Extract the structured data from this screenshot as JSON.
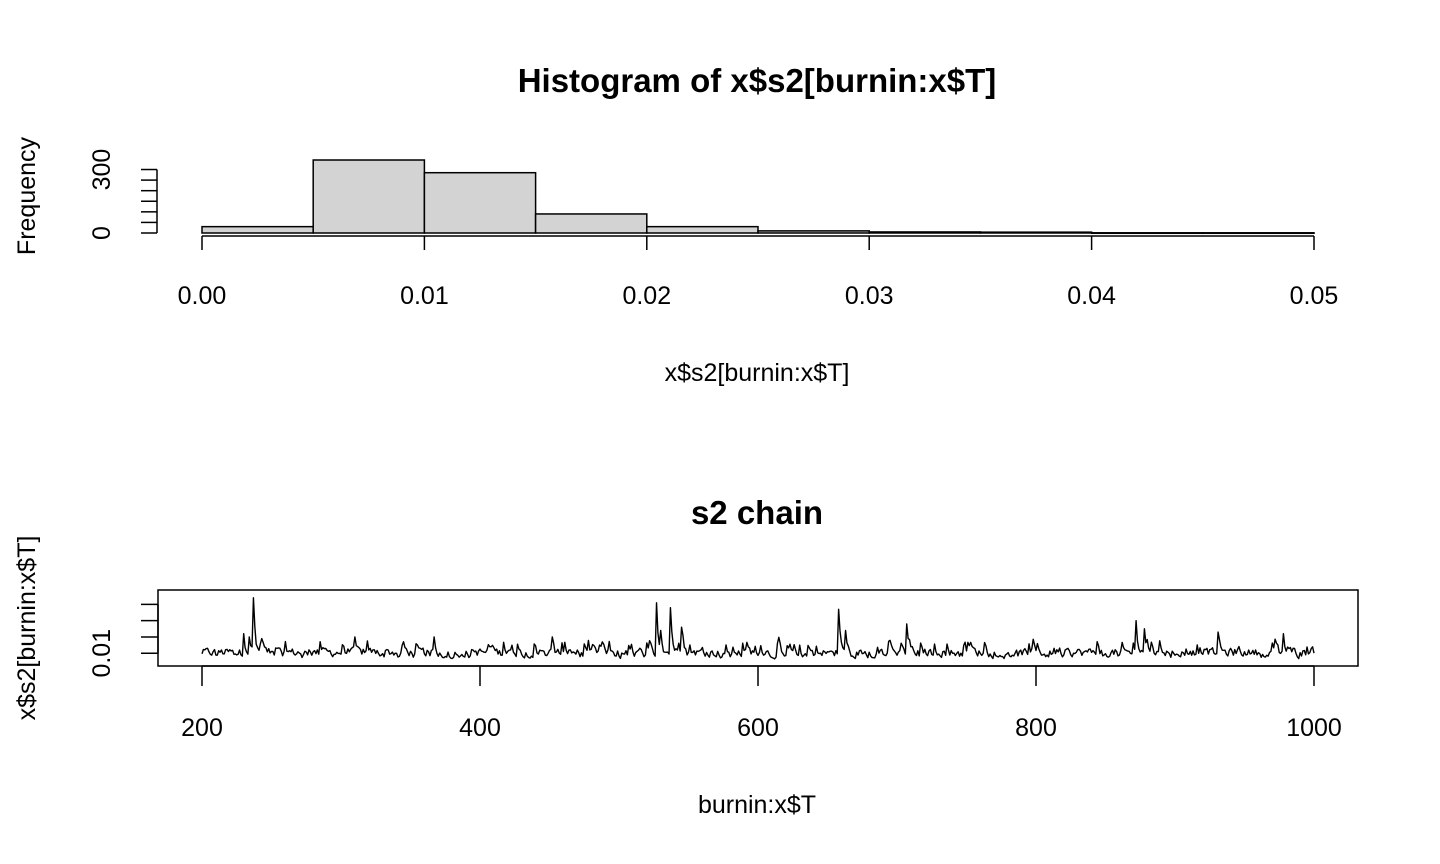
{
  "chart_data": [
    {
      "type": "bar",
      "title": "Histogram of x$s2[burnin:x$T]",
      "xlabel": "x$s2[burnin:x$T]",
      "ylabel": "Frequency",
      "bins": [
        {
          "from": 0.0,
          "to": 0.005,
          "count": 30
        },
        {
          "from": 0.005,
          "to": 0.01,
          "count": 345
        },
        {
          "from": 0.01,
          "to": 0.015,
          "count": 285
        },
        {
          "from": 0.015,
          "to": 0.02,
          "count": 90
        },
        {
          "from": 0.02,
          "to": 0.025,
          "count": 30
        },
        {
          "from": 0.025,
          "to": 0.03,
          "count": 10
        },
        {
          "from": 0.03,
          "to": 0.035,
          "count": 5
        },
        {
          "from": 0.035,
          "to": 0.04,
          "count": 4
        },
        {
          "from": 0.04,
          "to": 0.045,
          "count": 1
        },
        {
          "from": 0.045,
          "to": 0.05,
          "count": 1
        }
      ],
      "xticks": [
        "0.00",
        "0.01",
        "0.02",
        "0.03",
        "0.04",
        "0.05"
      ],
      "xlim": [
        0,
        0.05
      ],
      "yticks": [
        "0",
        "300"
      ],
      "ylim": [
        0,
        345
      ],
      "grid": false,
      "colors": {
        "bar_fill": "#d3d3d3",
        "bar_stroke": "#000000"
      }
    },
    {
      "type": "line",
      "title": "s2 chain",
      "xlabel": "burnin:x$T",
      "ylabel": "x$s2[burnin:x$T]",
      "xticks": [
        "200",
        "400",
        "600",
        "800",
        "1000"
      ],
      "xlim": [
        200,
        1000
      ],
      "yticks": [
        "0.01"
      ],
      "ylim": [
        0.004,
        0.047
      ],
      "grid": false,
      "x_start": 200,
      "x_end": 1000,
      "baseline": 0.0105,
      "spikes": [
        {
          "x": 230,
          "y": 0.022
        },
        {
          "x": 234,
          "y": 0.02
        },
        {
          "x": 237,
          "y": 0.044
        },
        {
          "x": 243,
          "y": 0.019
        },
        {
          "x": 310,
          "y": 0.02
        },
        {
          "x": 367,
          "y": 0.02
        },
        {
          "x": 452,
          "y": 0.02
        },
        {
          "x": 527,
          "y": 0.041
        },
        {
          "x": 530,
          "y": 0.024
        },
        {
          "x": 537,
          "y": 0.038
        },
        {
          "x": 545,
          "y": 0.026
        },
        {
          "x": 658,
          "y": 0.037
        },
        {
          "x": 663,
          "y": 0.024
        },
        {
          "x": 707,
          "y": 0.028
        },
        {
          "x": 872,
          "y": 0.03
        },
        {
          "x": 878,
          "y": 0.025
        },
        {
          "x": 931,
          "y": 0.023
        },
        {
          "x": 978,
          "y": 0.022
        }
      ],
      "color": "#000000"
    }
  ]
}
